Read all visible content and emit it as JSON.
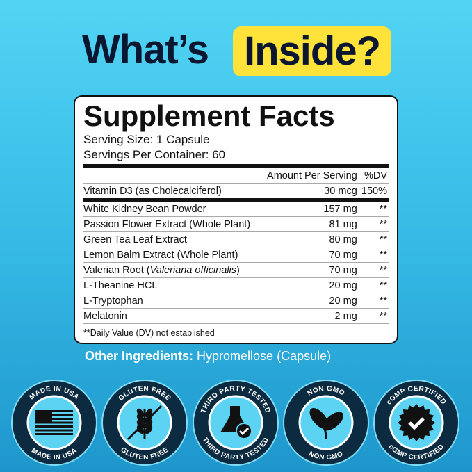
{
  "header": {
    "title_part1": "What’s",
    "title_highlight": "Inside?"
  },
  "facts": {
    "title": "Supplement Facts",
    "serving_size": "Serving Size: 1 Capsule",
    "servings_per_container": "Servings Per Container: 60",
    "column_headers": [
      "Amount Per Serving",
      "%DV"
    ],
    "vitamin_rows": [
      {
        "name": "Vitamin D3 (as Cholecalciferol)",
        "amount": "30 mcg",
        "dv": "150%"
      }
    ],
    "rows": [
      {
        "name": "White Kidney Bean Powder",
        "amount": "157 mg",
        "dv": "**"
      },
      {
        "name": "Passion Flower Extract (Whole Plant)",
        "amount": "81 mg",
        "dv": "**"
      },
      {
        "name": "Green Tea Leaf Extract",
        "amount": "80 mg",
        "dv": "**"
      },
      {
        "name": "Lemon Balm Extract (Whole Plant)",
        "amount": "70 mg",
        "dv": "**"
      },
      {
        "name": "Valerian Root (",
        "name_italic": "Valeriana officinalis",
        "name_end": ")",
        "amount": "70 mg",
        "dv": "**"
      },
      {
        "name": "L-Theanine HCL",
        "amount": "20 mg",
        "dv": "**"
      },
      {
        "name": "L-Tryptophan",
        "amount": "20 mg",
        "dv": "**"
      },
      {
        "name": "Melatonin",
        "amount": "2 mg",
        "dv": "**"
      }
    ],
    "footnote": "**Daily Value (DV) not established"
  },
  "other_ingredients": {
    "label": "Other Ingredients:",
    "value": "Hypromellose (Capsule)"
  },
  "badges": [
    {
      "top": "MADE IN USA",
      "bottom": "MADE IN USA"
    },
    {
      "top": "GLUTEN FREE",
      "bottom": "GLUTEN FREE"
    },
    {
      "top": "THIRD PARTY TESTED",
      "bottom": "THIRD PARTY TESTED"
    },
    {
      "top": "NON GMO",
      "bottom": "NON GMO"
    },
    {
      "top": "cGMP CERTIFIED",
      "bottom": "cGMP CERTIFIED"
    }
  ]
}
